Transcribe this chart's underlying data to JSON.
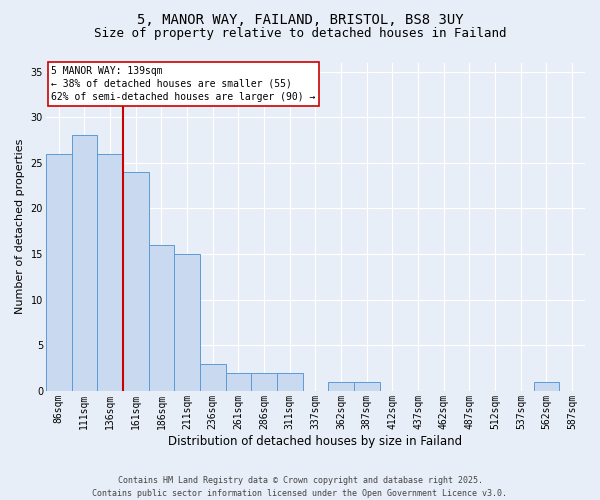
{
  "title_line1": "5, MANOR WAY, FAILAND, BRISTOL, BS8 3UY",
  "title_line2": "Size of property relative to detached houses in Failand",
  "xlabel": "Distribution of detached houses by size in Failand",
  "ylabel": "Number of detached properties",
  "categories": [
    "86sqm",
    "111sqm",
    "136sqm",
    "161sqm",
    "186sqm",
    "211sqm",
    "236sqm",
    "261sqm",
    "286sqm",
    "311sqm",
    "337sqm",
    "362sqm",
    "387sqm",
    "412sqm",
    "437sqm",
    "462sqm",
    "487sqm",
    "512sqm",
    "537sqm",
    "562sqm",
    "587sqm"
  ],
  "values": [
    26,
    28,
    26,
    24,
    16,
    15,
    3,
    2,
    2,
    2,
    0,
    1,
    1,
    0,
    0,
    0,
    0,
    0,
    0,
    1,
    0
  ],
  "bar_color": "#c9d9f0",
  "bar_edge_color": "#5b9bd5",
  "background_color": "#e8eef7",
  "grid_color": "#ffffff",
  "red_line_index": 2,
  "annotation_line1": "5 MANOR WAY: 139sqm",
  "annotation_line2": "← 38% of detached houses are smaller (55)",
  "annotation_line3": "62% of semi-detached houses are larger (90) →",
  "annotation_bg": "#ffffff",
  "annotation_edge": "#cc0000",
  "footer": "Contains HM Land Registry data © Crown copyright and database right 2025.\nContains public sector information licensed under the Open Government Licence v3.0.",
  "ylim": [
    0,
    36
  ],
  "yticks": [
    0,
    5,
    10,
    15,
    20,
    25,
    30,
    35
  ],
  "title1_fontsize": 10,
  "title2_fontsize": 9,
  "ylabel_fontsize": 8,
  "xlabel_fontsize": 8.5,
  "tick_fontsize": 7,
  "annotation_fontsize": 7,
  "footer_fontsize": 6
}
